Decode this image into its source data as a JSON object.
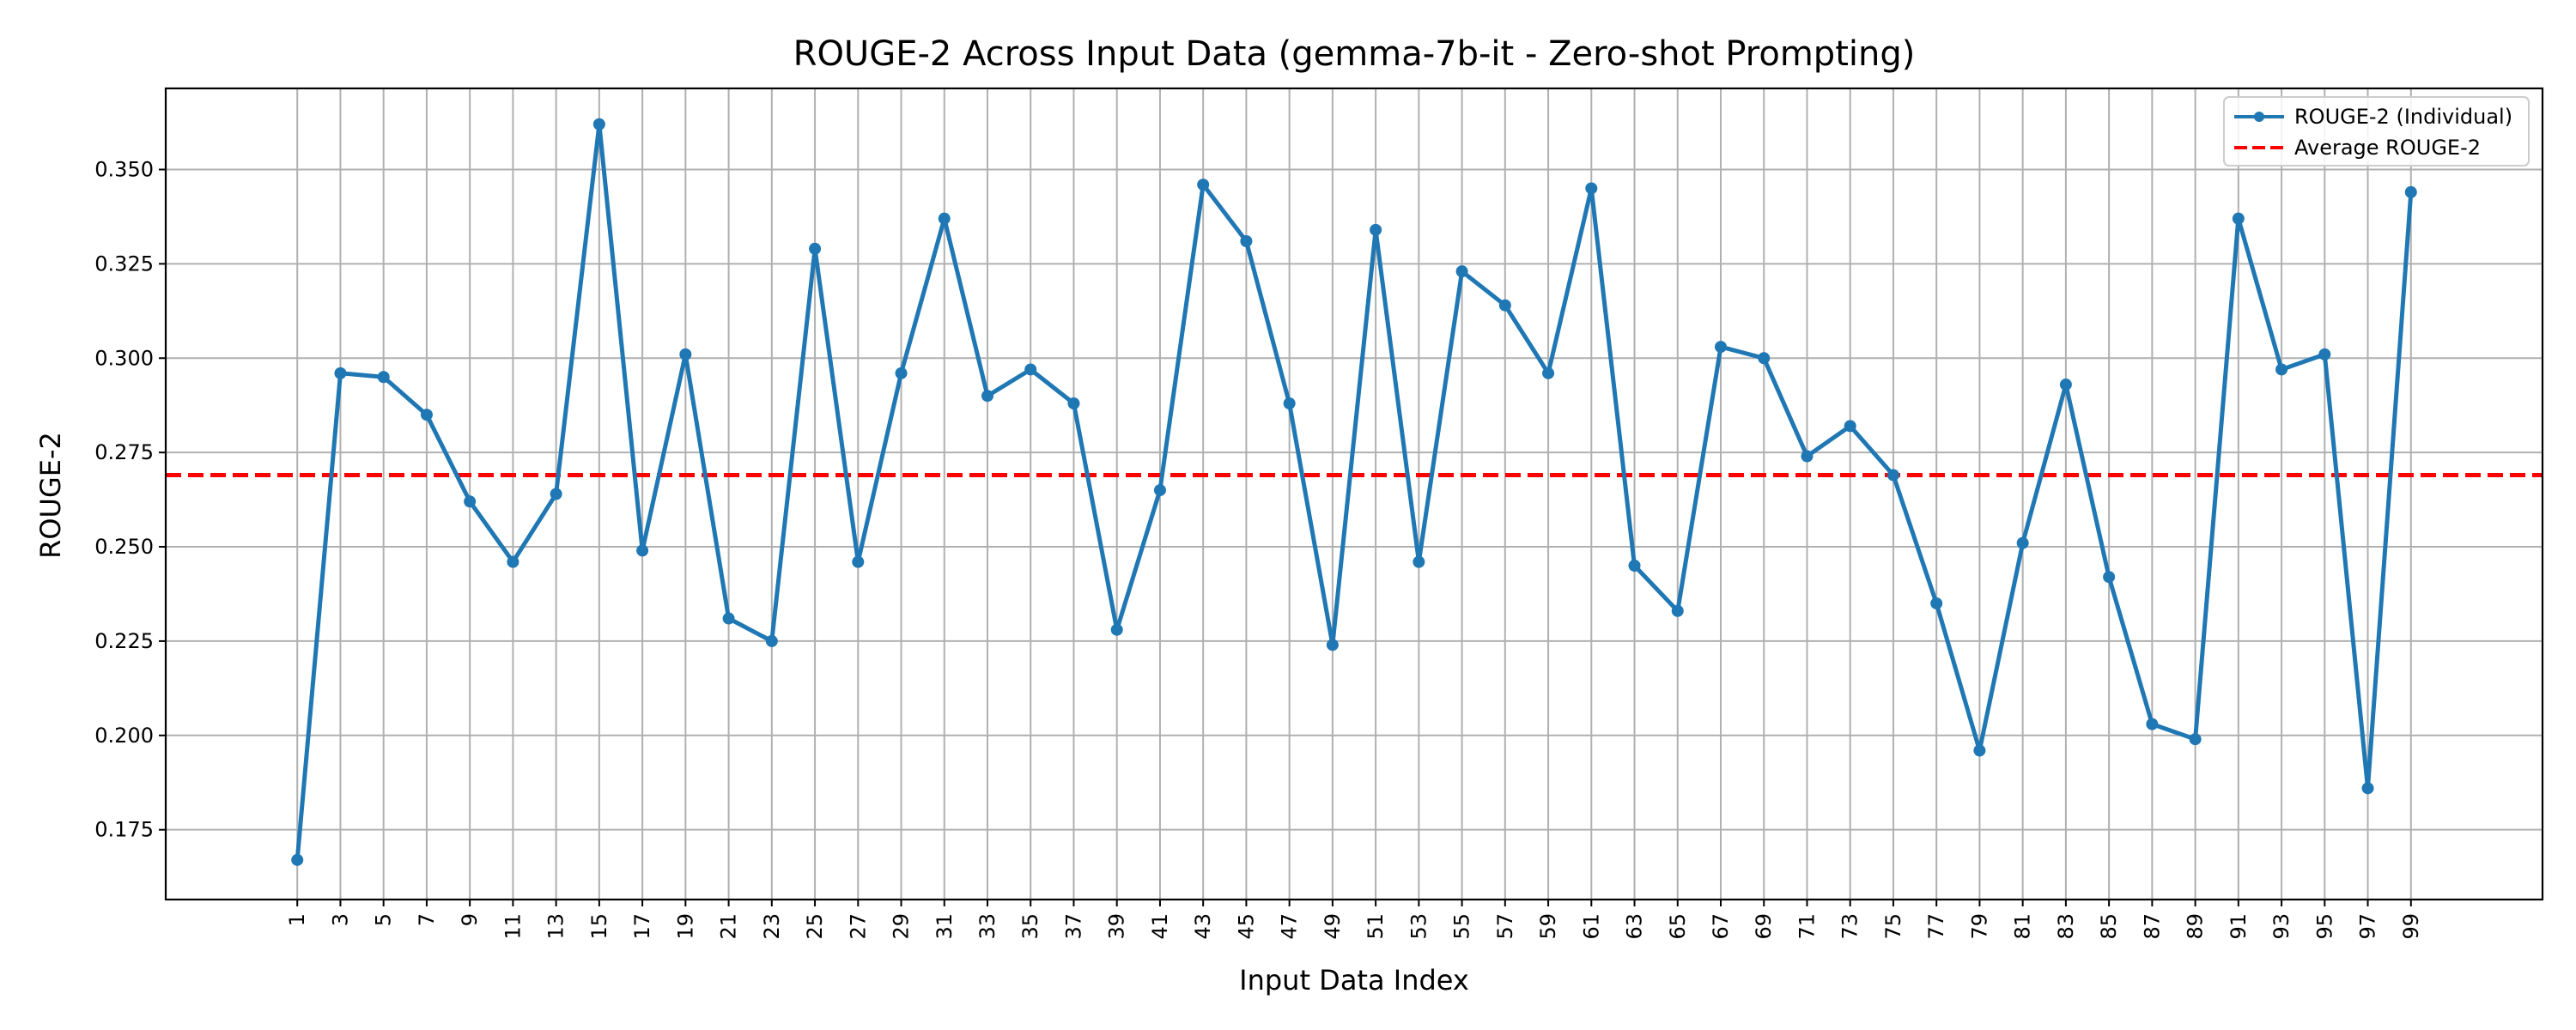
{
  "chart_data": {
    "type": "line",
    "title": "ROUGE-2 Across Input Data (gemma-7b-it - Zero-shot Prompting)",
    "xlabel": "Input Data Index",
    "ylabel": "ROUGE-2",
    "x": [
      1,
      3,
      5,
      7,
      9,
      11,
      13,
      15,
      17,
      19,
      21,
      23,
      25,
      27,
      29,
      31,
      33,
      35,
      37,
      39,
      41,
      43,
      45,
      47,
      49,
      51,
      53,
      55,
      57,
      59,
      61,
      63,
      65,
      67,
      69,
      71,
      73,
      75,
      77,
      79,
      81,
      83,
      85,
      87,
      89,
      91,
      93,
      95,
      97,
      99
    ],
    "x_tick_labels": [
      "1",
      "3",
      "5",
      "7",
      "9",
      "11",
      "13",
      "15",
      "17",
      "19",
      "21",
      "23",
      "25",
      "27",
      "29",
      "31",
      "33",
      "35",
      "37",
      "39",
      "41",
      "43",
      "45",
      "47",
      "49",
      "51",
      "53",
      "55",
      "57",
      "59",
      "61",
      "63",
      "65",
      "67",
      "69",
      "71",
      "73",
      "75",
      "77",
      "79",
      "81",
      "83",
      "85",
      "87",
      "89",
      "91",
      "93",
      "95",
      "97",
      "99"
    ],
    "xlim": [
      -5.1,
      105.1
    ],
    "ylim": [
      0.1565,
      0.3715
    ],
    "y_ticks": [
      0.175,
      0.2,
      0.225,
      0.25,
      0.275,
      0.3,
      0.325,
      0.35
    ],
    "y_tick_labels": [
      "0.175",
      "0.200",
      "0.225",
      "0.250",
      "0.275",
      "0.300",
      "0.325",
      "0.350"
    ],
    "grid": true,
    "legend_position": "top-right",
    "series": [
      {
        "name": "ROUGE-2 (Individual)",
        "color": "#1f77b4",
        "style": "solid-with-markers",
        "values": [
          0.167,
          0.296,
          0.295,
          0.285,
          0.262,
          0.246,
          0.264,
          0.362,
          0.249,
          0.301,
          0.231,
          0.225,
          0.329,
          0.246,
          0.296,
          0.337,
          0.29,
          0.297,
          0.288,
          0.228,
          0.265,
          0.346,
          0.331,
          0.288,
          0.224,
          0.334,
          0.246,
          0.323,
          0.314,
          0.296,
          0.345,
          0.245,
          0.233,
          0.303,
          0.3,
          0.274,
          0.282,
          0.269,
          0.235,
          0.196,
          0.251,
          0.293,
          0.242,
          0.203,
          0.199,
          0.337,
          0.297,
          0.301,
          0.186,
          0.344
        ]
      },
      {
        "name": "Average ROUGE-2",
        "color": "#ff0000",
        "style": "dashed",
        "value": 0.269
      }
    ]
  }
}
